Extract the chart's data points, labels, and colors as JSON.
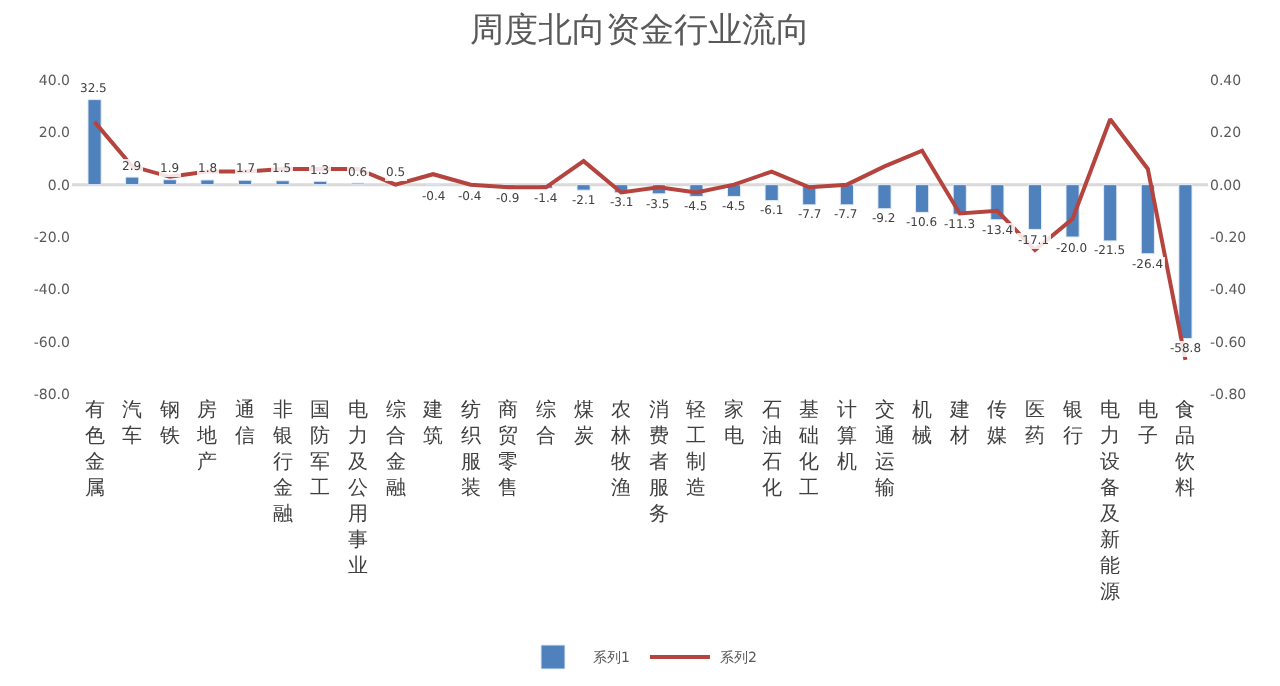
{
  "chart_data": {
    "type": "bar",
    "title": "周度北向资金行业流向",
    "categories": [
      "有色金属",
      "汽车",
      "钢铁",
      "房地产",
      "通信",
      "非银行金融",
      "国防军工",
      "电力及公用事业",
      "综合金融",
      "建筑",
      "纺织服装",
      "商贸零售",
      "综合",
      "煤炭",
      "农林牧渔",
      "消费者服务",
      "轻工制造",
      "家电",
      "石油石化",
      "基础化工",
      "计算机",
      "交通运输",
      "机械",
      "建材",
      "传媒",
      "医药",
      "银行",
      "电力设备及新能源",
      "电子",
      "食品饮料"
    ],
    "series": [
      {
        "name": "系列1",
        "color": "#4f81bd",
        "values": [
          32.5,
          2.9,
          1.9,
          1.8,
          1.7,
          1.5,
          1.3,
          0.6,
          0.5,
          -0.4,
          -0.4,
          -0.9,
          -1.4,
          -2.1,
          -3.1,
          -3.5,
          -4.5,
          -4.5,
          -6.1,
          -7.7,
          -7.7,
          -9.2,
          -10.6,
          -11.3,
          -13.4,
          -17.1,
          -20.0,
          -21.5,
          -26.4,
          -58.8
        ],
        "value_labels": [
          "32.5",
          "2.9",
          "1.9",
          "1.8",
          "1.7",
          "1.5",
          "1.3",
          "0.6",
          "0.5",
          "-0.4",
          "-0.4",
          "-0.9",
          "-1.4",
          "-2.1",
          "-3.1",
          "-3.5",
          "-4.5",
          "-4.5",
          "-6.1",
          "-7.7",
          "-7.7",
          "-9.2",
          "-10.6",
          "-11.3",
          "-13.4",
          "-17.1",
          "-20.0",
          "-21.5",
          "-26.4",
          "-58.8"
        ]
      },
      {
        "name": "系列2",
        "type": "line",
        "axis": "y2",
        "color": "#b5443f",
        "marker": "none",
        "values": [
          0.24,
          0.07,
          0.03,
          0.05,
          0.05,
          0.06,
          0.06,
          0.06,
          0.0,
          0.04,
          0.0,
          -0.01,
          -0.01,
          0.09,
          -0.03,
          -0.01,
          -0.03,
          0.0,
          0.05,
          -0.01,
          0.0,
          0.07,
          0.13,
          -0.11,
          -0.1,
          -0.25,
          -0.13,
          0.25,
          0.06,
          -0.67
        ]
      }
    ],
    "ylim": [
      -80,
      40
    ],
    "yticks": [
      {
        "value": -80,
        "label": "-80.0"
      },
      {
        "value": -60,
        "label": "-60.0"
      },
      {
        "value": -40,
        "label": "-40.0"
      },
      {
        "value": -20,
        "label": "-20.0"
      },
      {
        "value": 0,
        "label": "0.0"
      },
      {
        "value": 20,
        "label": "20.0"
      },
      {
        "value": 40,
        "label": "40.0"
      }
    ],
    "y2lim": [
      -0.8,
      0.4
    ],
    "y2ticks": [
      {
        "value": -0.8,
        "label": "-0.80"
      },
      {
        "value": -0.6,
        "label": "-0.60"
      },
      {
        "value": -0.4,
        "label": "-0.40"
      },
      {
        "value": -0.2,
        "label": "-0.20"
      },
      {
        "value": 0,
        "label": "0.00"
      },
      {
        "value": 0.2,
        "label": "0.20"
      },
      {
        "value": 0.4,
        "label": "0.40"
      }
    ],
    "grid": false,
    "ref_lines": [
      {
        "axis": "y",
        "value": 0,
        "color": "#d9d9d9"
      }
    ],
    "legend": "bottom"
  }
}
